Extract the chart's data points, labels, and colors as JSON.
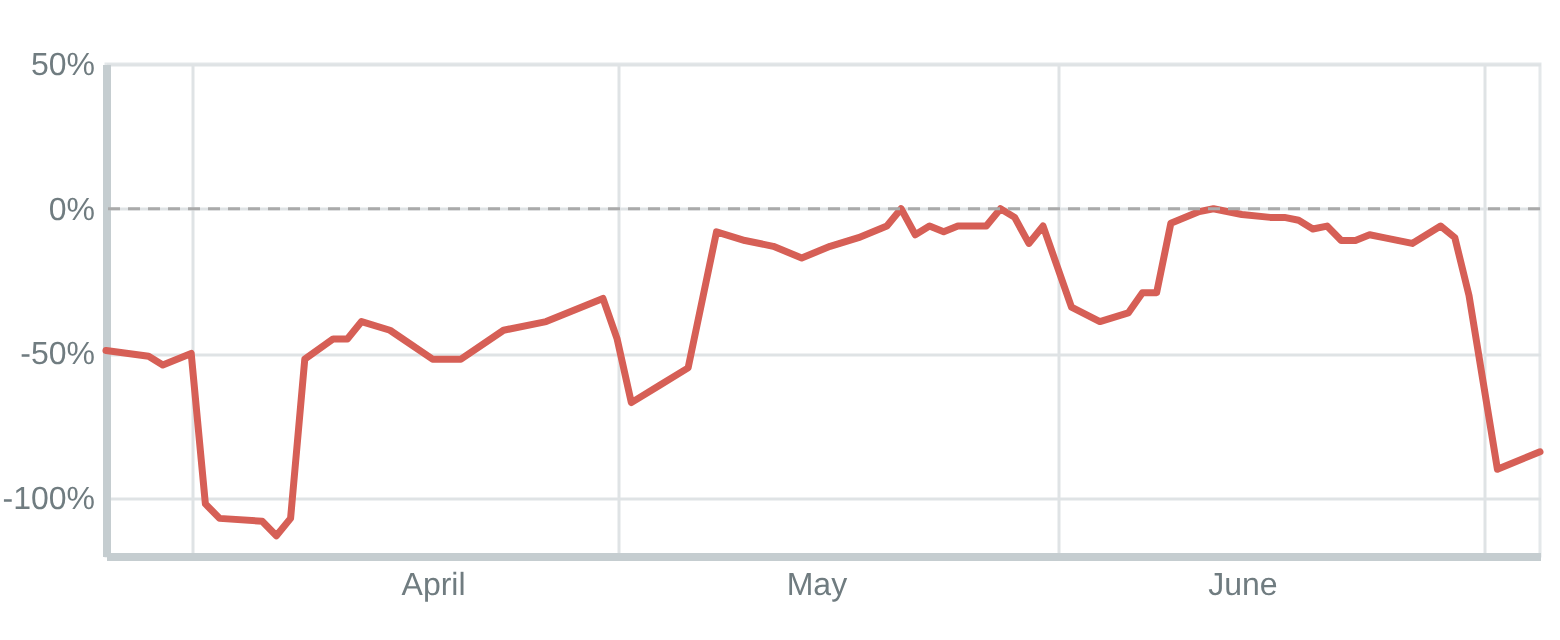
{
  "chart_data": {
    "type": "line",
    "x": [
      "--03-26",
      "--03-29",
      "--03-30",
      "--04-01",
      "--04-02",
      "--04-03",
      "--04-06",
      "--04-07",
      "--04-08",
      "--04-09",
      "--04-11",
      "--04-12",
      "--04-13",
      "--04-15",
      "--04-18",
      "--04-20",
      "--04-23",
      "--04-26",
      "--04-30",
      "--05-01",
      "--05-02",
      "--05-04",
      "--05-06",
      "--05-08",
      "--05-10",
      "--05-12",
      "--05-14",
      "--05-16",
      "--05-18",
      "--05-20",
      "--05-21",
      "--05-22",
      "--05-23",
      "--05-24",
      "--05-25",
      "--05-27",
      "--05-28",
      "--05-29",
      "--05-30",
      "--05-31",
      "--06-02",
      "--06-04",
      "--06-06",
      "--06-07",
      "--06-08",
      "--06-09",
      "--06-11",
      "--06-12",
      "--06-14",
      "--06-16",
      "--06-17",
      "--06-18",
      "--06-19",
      "--06-20",
      "--06-21",
      "--06-22",
      "--06-23",
      "--06-24",
      "--06-26",
      "--06-28",
      "--06-29",
      "--06-30",
      "--07-01",
      "--07-02",
      "--07-05"
    ],
    "series": [
      {
        "color": "#d65f56",
        "values": [
          -49,
          -51,
          -54,
          -50,
          -102,
          -107,
          -108,
          -113,
          -107,
          -52,
          -45,
          -45,
          -39,
          -42,
          -52,
          -52,
          -42,
          -39,
          -31,
          -45,
          -67,
          -61,
          -55,
          -8,
          -11,
          -13,
          -17,
          -13,
          -10,
          -6,
          0,
          -9,
          -6,
          -8,
          -6,
          -6,
          0,
          -3,
          -12,
          -6,
          -34,
          -39,
          -36,
          -29,
          -29,
          -5,
          -1,
          0,
          -2,
          -3,
          -3,
          -4,
          -7,
          -6,
          -11,
          -11,
          -9,
          -10,
          -12,
          -6,
          -10,
          -30,
          -60,
          -90,
          -84
        ]
      }
    ],
    "xlim": [
      "--03-26",
      "--07-05"
    ],
    "xticks": [
      {
        "value": "--04-01",
        "label": null
      },
      {
        "value": "--04-18",
        "label": "April"
      },
      {
        "value": "--05-01",
        "label": null
      },
      {
        "value": "--05-15",
        "label": "May"
      },
      {
        "value": "--06-01",
        "label": null
      },
      {
        "value": "--06-14",
        "label": "June"
      },
      {
        "value": "--07-01",
        "label": null
      }
    ],
    "ylim": [
      -120,
      50
    ],
    "yticks": [
      {
        "value": -100,
        "label": "-100%"
      },
      {
        "value": -50,
        "label": "-50%"
      },
      {
        "value": 0,
        "label": "0%"
      },
      {
        "value": 50,
        "label": "50%"
      }
    ],
    "grid": true,
    "line_style": "solid",
    "ref_lines": [
      {
        "axis": "y",
        "value": 0,
        "color": "#aaaaaa",
        "line_style": "dashed"
      }
    ]
  }
}
